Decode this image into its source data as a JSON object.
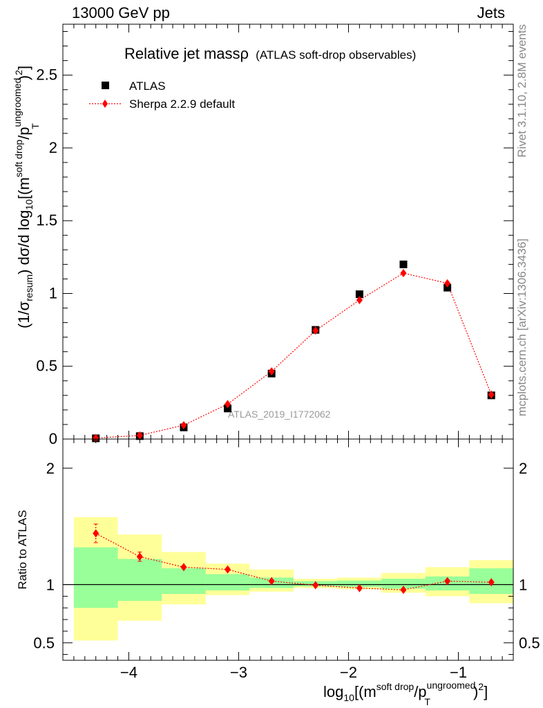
{
  "header": {
    "left": "13000 GeV pp",
    "right": "Jets"
  },
  "side_labels": {
    "rivet": "Rivet 3.1.10,  2.8M events",
    "mcplots": "mcplots.cern.ch [arXiv:1306.3436]"
  },
  "chart_data": [
    {
      "type": "scatter",
      "panel": "main",
      "title_main": "Relative jet massρ",
      "title_sub": "(ATLAS soft-drop observables)",
      "ylabel": "(1/σresum) dσ/d log10[(msoft drop/pTungroomed)2]",
      "ylabel_parts": {
        "pre": "(1/σ",
        "sub1": "resum",
        "mid": ") dσ/d log",
        "sub2": "10",
        "mid2": "[(m",
        "sup1": "soft drop",
        "mid3": "/p",
        "sup2": "ungroomed",
        "sub3": "T",
        "end": ")",
        "sup3": "2",
        "close": "]"
      },
      "xlim": [
        -4.6,
        -0.5
      ],
      "ylim": [
        0,
        2.85
      ],
      "y_ticks": [
        0,
        0.5,
        1,
        1.5,
        2,
        2.5
      ],
      "y_tick_labels": [
        "0",
        "0.5",
        "1",
        "1.5",
        "2",
        "2.5"
      ],
      "watermark": "ATLAS_2019_I1772062",
      "series": [
        {
          "name": "ATLAS",
          "marker": "square",
          "color": "#000000",
          "x": [
            -4.3,
            -3.9,
            -3.5,
            -3.1,
            -2.7,
            -2.3,
            -1.9,
            -1.5,
            -1.1,
            -0.7
          ],
          "y": [
            0.005,
            0.02,
            0.08,
            0.21,
            0.45,
            0.75,
            0.995,
            1.2,
            1.04,
            0.3
          ]
        },
        {
          "name": "Sherpa 2.2.9 default",
          "marker": "diamond",
          "color": "#ff0000",
          "line": "dotted",
          "x": [
            -4.3,
            -3.9,
            -3.5,
            -3.1,
            -2.7,
            -2.3,
            -1.9,
            -1.5,
            -1.1,
            -0.7
          ],
          "y": [
            0.007,
            0.025,
            0.095,
            0.24,
            0.465,
            0.745,
            0.955,
            1.14,
            1.07,
            0.305
          ]
        }
      ]
    },
    {
      "type": "scatter",
      "panel": "ratio",
      "ylabel": "Ratio to ATLAS",
      "xlabel_parts": {
        "pre": "log",
        "sub1": "10",
        "mid": "[(m",
        "sup1": "soft drop",
        "mid2": "/p",
        "sup2": "ungroomed",
        "sub2": "T",
        "end": ")",
        "sup3": "2",
        "close": "]"
      },
      "xlim": [
        -4.6,
        -0.5
      ],
      "ylim": [
        0.35,
        2.25
      ],
      "x_ticks": [
        -4,
        -3,
        -2,
        -1
      ],
      "x_tick_labels": [
        "−4",
        "−3",
        "−2",
        "−1"
      ],
      "y_ticks": [
        0.5,
        1,
        2
      ],
      "y_tick_labels": [
        "0.5",
        "1",
        "2"
      ],
      "bands": {
        "bin_edges": [
          -4.5,
          -4.1,
          -3.7,
          -3.3,
          -2.9,
          -2.5,
          -2.1,
          -1.7,
          -1.3,
          -0.9,
          -0.5
        ],
        "yellow": [
          [
            0.52,
            1.58
          ],
          [
            0.69,
            1.43
          ],
          [
            0.83,
            1.28
          ],
          [
            0.91,
            1.18
          ],
          [
            0.94,
            1.13
          ],
          [
            0.97,
            1.05
          ],
          [
            0.96,
            1.06
          ],
          [
            0.93,
            1.1
          ],
          [
            0.9,
            1.15
          ],
          [
            0.84,
            1.21
          ]
        ],
        "green": [
          [
            0.8,
            1.32
          ],
          [
            0.86,
            1.22
          ],
          [
            0.92,
            1.14
          ],
          [
            0.95,
            1.09
          ],
          [
            0.97,
            1.06
          ],
          [
            0.985,
            1.03
          ],
          [
            0.98,
            1.035
          ],
          [
            0.965,
            1.05
          ],
          [
            0.95,
            1.07
          ],
          [
            0.92,
            1.14
          ]
        ],
        "yellow_color": "#ffff99",
        "green_color": "#99ff99"
      },
      "series": [
        {
          "name": "Sherpa 2.2.9 default",
          "marker": "diamond",
          "color": "#ff0000",
          "x": [
            -4.3,
            -3.9,
            -3.5,
            -3.1,
            -2.7,
            -2.3,
            -1.9,
            -1.5,
            -1.1,
            -0.7
          ],
          "y": [
            1.44,
            1.24,
            1.15,
            1.13,
            1.03,
            0.995,
            0.97,
            0.955,
            1.03,
            1.02
          ],
          "yerr": [
            0.08,
            0.04,
            0.01,
            0.01,
            0.005,
            0.003,
            0.003,
            0.003,
            0.004,
            0.006
          ]
        }
      ]
    }
  ]
}
